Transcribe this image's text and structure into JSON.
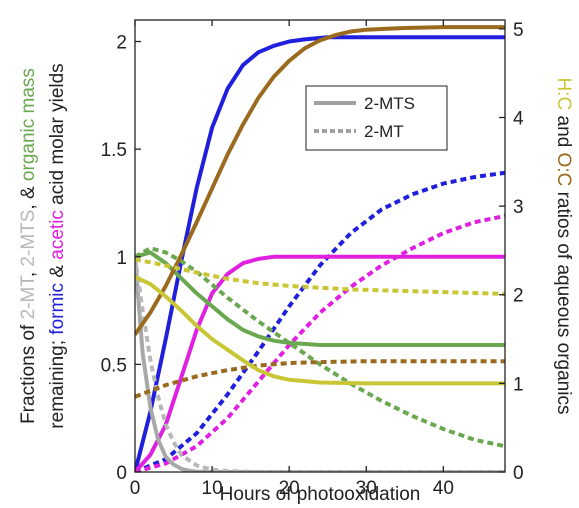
{
  "chart_data": {
    "type": "line",
    "xlabel": "Hours of photooxidation",
    "xlim": [
      0,
      48
    ],
    "ylim_left": [
      0,
      2.1
    ],
    "ylim_right": [
      0,
      5.1
    ],
    "x_ticks": [
      "0",
      "10",
      "20",
      "30",
      "40"
    ],
    "y_left_ticks": [
      "0",
      "0.5",
      "1",
      "1.5",
      "2"
    ],
    "y_right_ticks": [
      "0",
      "1",
      "2",
      "3",
      "4",
      "5"
    ],
    "ylabel_left": {
      "line1": [
        {
          "text": "Fractions of ",
          "color": "#222222"
        },
        {
          "text": "2-MT",
          "color": "#b8b8b8"
        },
        {
          "text": ", ",
          "color": "#222222"
        },
        {
          "text": "2-MTS",
          "color": "#b8b8b8"
        },
        {
          "text": ", & ",
          "color": "#222222"
        },
        {
          "text": "organic mass",
          "color": "#6aa84f"
        }
      ],
      "line2": [
        {
          "text": "remaining; ",
          "color": "#222222"
        },
        {
          "text": "formic",
          "color": "#1f1fdd"
        },
        {
          "text": " & ",
          "color": "#222222"
        },
        {
          "text": "acetic",
          "color": "#e020e0"
        },
        {
          "text": " acid molar yields",
          "color": "#222222"
        }
      ]
    },
    "ylabel_right": [
      {
        "text": "H:C",
        "color": "#c9c636"
      },
      {
        "text": " and ",
        "color": "#222222"
      },
      {
        "text": "O:C",
        "color": "#9a6a1e"
      },
      {
        "text": " ratios of aqueous organics",
        "color": "#222222"
      }
    ],
    "legend": {
      "placement": "top-right",
      "entries": [
        {
          "label": "2-MTS",
          "style": "solid",
          "color": "#a0a0a0"
        },
        {
          "label": "2-MT",
          "style": "dotted",
          "color": "#a0a0a0"
        }
      ]
    },
    "series": [
      {
        "axis": "left",
        "color": "#1f1fdd",
        "style": "solid",
        "x": [
          0,
          2,
          4,
          6,
          8,
          10,
          12,
          14,
          16,
          18,
          20,
          22,
          25,
          30,
          35,
          40,
          48
        ],
        "y": [
          0,
          0.28,
          0.62,
          0.98,
          1.32,
          1.6,
          1.78,
          1.89,
          1.95,
          1.98,
          2.0,
          2.01,
          2.02,
          2.02,
          2.02,
          2.02,
          2.02
        ]
      },
      {
        "axis": "left",
        "color": "#1f1fdd",
        "style": "dotted",
        "x": [
          0,
          4,
          8,
          12,
          16,
          20,
          24,
          28,
          32,
          36,
          40,
          44,
          48
        ],
        "y": [
          0,
          0.06,
          0.18,
          0.36,
          0.56,
          0.77,
          0.96,
          1.11,
          1.22,
          1.29,
          1.34,
          1.37,
          1.39
        ]
      },
      {
        "axis": "left",
        "color": "#e020e0",
        "style": "solid",
        "x": [
          0,
          2,
          4,
          6,
          8,
          10,
          12,
          14,
          16,
          18,
          20,
          24,
          30,
          40,
          48
        ],
        "y": [
          0,
          0.08,
          0.22,
          0.44,
          0.66,
          0.83,
          0.92,
          0.97,
          0.99,
          1.0,
          1.0,
          1.0,
          1.0,
          1.0,
          1.0
        ]
      },
      {
        "axis": "left",
        "color": "#e020e0",
        "style": "dotted",
        "x": [
          0,
          4,
          8,
          12,
          16,
          20,
          24,
          28,
          32,
          36,
          40,
          44,
          48
        ],
        "y": [
          0,
          0.04,
          0.12,
          0.25,
          0.42,
          0.59,
          0.74,
          0.86,
          0.96,
          1.04,
          1.11,
          1.16,
          1.19
        ]
      },
      {
        "axis": "left",
        "color": "#6aa84f",
        "style": "solid",
        "x": [
          0,
          2,
          4,
          6,
          8,
          10,
          12,
          14,
          16,
          18,
          20,
          24,
          30,
          40,
          48
        ],
        "y": [
          1.0,
          1.02,
          0.97,
          0.9,
          0.83,
          0.77,
          0.71,
          0.66,
          0.63,
          0.61,
          0.6,
          0.59,
          0.59,
          0.59,
          0.59
        ]
      },
      {
        "axis": "left",
        "color": "#6aa84f",
        "style": "dotted",
        "x": [
          0,
          2,
          4,
          6,
          8,
          10,
          12,
          16,
          20,
          24,
          28,
          32,
          36,
          40,
          44,
          48
        ],
        "y": [
          1.0,
          1.04,
          1.02,
          0.98,
          0.93,
          0.87,
          0.81,
          0.7,
          0.6,
          0.5,
          0.41,
          0.33,
          0.26,
          0.2,
          0.15,
          0.12
        ]
      },
      {
        "axis": "left",
        "color": "#a8a8a8",
        "style": "solid",
        "x": [
          0,
          1,
          2,
          3,
          4,
          5,
          6,
          7,
          8,
          10,
          12,
          48
        ],
        "y": [
          1.0,
          0.55,
          0.3,
          0.15,
          0.07,
          0.035,
          0.015,
          0.006,
          0.002,
          0,
          0,
          0
        ]
      },
      {
        "axis": "left",
        "color": "#b8b8b8",
        "style": "dotted",
        "x": [
          0,
          1,
          2,
          3,
          4,
          5,
          6,
          8,
          10,
          12,
          15,
          20,
          48
        ],
        "y": [
          1.0,
          0.75,
          0.52,
          0.35,
          0.22,
          0.14,
          0.08,
          0.03,
          0.01,
          0.004,
          0.001,
          0,
          0
        ]
      },
      {
        "axis": "right",
        "color": "#9a6a1e",
        "style": "solid",
        "x": [
          0,
          2,
          4,
          6,
          8,
          10,
          12,
          14,
          16,
          18,
          20,
          22,
          24,
          26,
          28,
          30,
          35,
          40,
          48
        ],
        "y": [
          1.55,
          1.8,
          2.1,
          2.45,
          2.82,
          3.2,
          3.58,
          3.92,
          4.22,
          4.46,
          4.64,
          4.78,
          4.87,
          4.93,
          4.97,
          4.99,
          5.01,
          5.02,
          5.02
        ]
      },
      {
        "axis": "right",
        "color": "#9a6a1e",
        "style": "dotted",
        "x": [
          0,
          4,
          8,
          12,
          16,
          20,
          24,
          30,
          36,
          42,
          48
        ],
        "y": [
          0.85,
          0.98,
          1.08,
          1.15,
          1.2,
          1.23,
          1.24,
          1.25,
          1.25,
          1.25,
          1.25
        ]
      },
      {
        "axis": "right",
        "color": "#c9c636",
        "style": "solid",
        "x": [
          0,
          2,
          4,
          6,
          8,
          10,
          12,
          14,
          16,
          18,
          20,
          24,
          30,
          40,
          48
        ],
        "y": [
          2.2,
          2.12,
          1.98,
          1.82,
          1.65,
          1.5,
          1.38,
          1.26,
          1.15,
          1.08,
          1.04,
          1.01,
          1.0,
          1.0,
          1.0
        ]
      },
      {
        "axis": "right",
        "color": "#c9c636",
        "style": "dotted",
        "x": [
          0,
          4,
          8,
          12,
          16,
          20,
          24,
          28,
          32,
          36,
          40,
          44,
          48
        ],
        "y": [
          2.4,
          2.33,
          2.25,
          2.18,
          2.13,
          2.1,
          2.08,
          2.06,
          2.05,
          2.04,
          2.03,
          2.02,
          2.01
        ]
      }
    ]
  }
}
